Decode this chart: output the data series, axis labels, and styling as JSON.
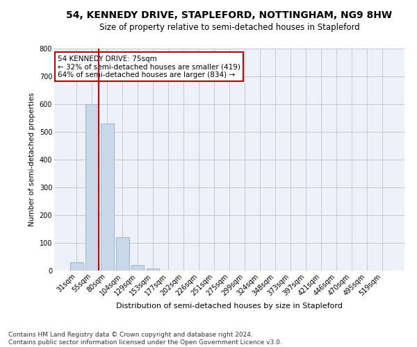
{
  "title": "54, KENNEDY DRIVE, STAPLEFORD, NOTTINGHAM, NG9 8HW",
  "subtitle": "Size of property relative to semi-detached houses in Stapleford",
  "xlabel": "Distribution of semi-detached houses by size in Stapleford",
  "ylabel": "Number of semi-detached properties",
  "categories": [
    "31sqm",
    "55sqm",
    "80sqm",
    "104sqm",
    "129sqm",
    "153sqm",
    "177sqm",
    "202sqm",
    "226sqm",
    "251sqm",
    "275sqm",
    "299sqm",
    "324sqm",
    "348sqm",
    "373sqm",
    "397sqm",
    "421sqm",
    "446sqm",
    "470sqm",
    "495sqm",
    "519sqm"
  ],
  "values": [
    30,
    600,
    530,
    120,
    20,
    8,
    0,
    0,
    0,
    0,
    0,
    0,
    0,
    0,
    0,
    0,
    0,
    0,
    0,
    0,
    0
  ],
  "bar_color": "#c8d8e8",
  "bar_edge_color": "#a0b8d0",
  "subject_line_color": "#cc0000",
  "annotation_text": "54 KENNEDY DRIVE: 75sqm\n← 32% of semi-detached houses are smaller (419)\n64% of semi-detached houses are larger (834) →",
  "annotation_box_color": "#ffffff",
  "annotation_box_edge": "#cc0000",
  "ylim": [
    0,
    800
  ],
  "yticks": [
    0,
    100,
    200,
    300,
    400,
    500,
    600,
    700,
    800
  ],
  "grid_color": "#c0c8d8",
  "bg_color": "#eef2f8",
  "footer": "Contains HM Land Registry data © Crown copyright and database right 2024.\nContains public sector information licensed under the Open Government Licence v3.0.",
  "title_fontsize": 10,
  "subtitle_fontsize": 8.5,
  "xlabel_fontsize": 8,
  "ylabel_fontsize": 7.5,
  "tick_fontsize": 7,
  "footer_fontsize": 6.5,
  "annotation_fontsize": 7.5
}
